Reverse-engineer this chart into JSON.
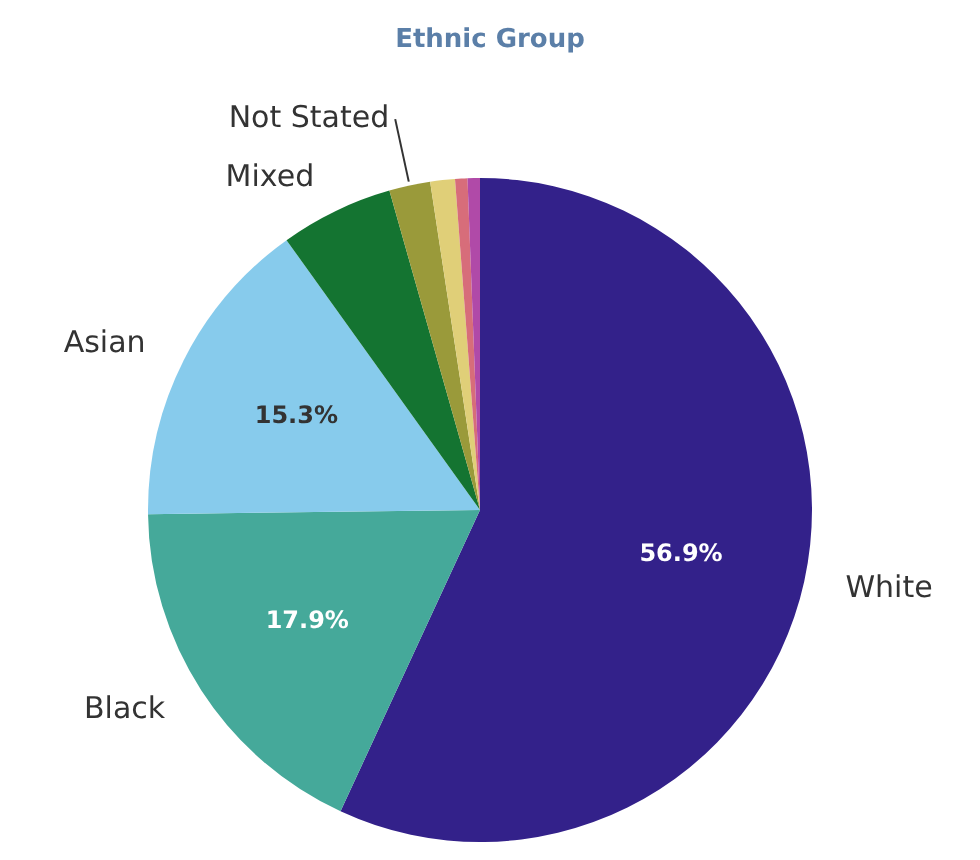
{
  "chart_data": {
    "type": "pie",
    "title": "Ethnic Group",
    "categories": [
      "White",
      "Black",
      "Asian",
      "Mixed",
      "Not Stated",
      null,
      null,
      null
    ],
    "values": [
      56.9,
      17.9,
      15.3,
      5.5,
      2.0,
      1.2,
      0.6,
      0.6
    ],
    "colors": [
      "#33218a",
      "#45a99a",
      "#87cbec",
      "#147431",
      "#9a9a3a",
      "#e0cf78",
      "#d76d7a",
      "#b04aa8"
    ],
    "value_labels": [
      "56.9%",
      "17.9%",
      "15.3%",
      null,
      null,
      null,
      null,
      null
    ],
    "legend": false
  }
}
